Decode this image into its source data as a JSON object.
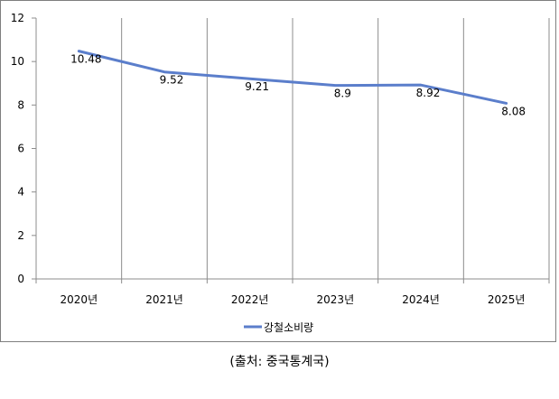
{
  "chart_data": {
    "type": "line",
    "categories": [
      "2020년",
      "2021년",
      "2022년",
      "2023년",
      "2024년",
      "2025년"
    ],
    "series": [
      {
        "name": "강철소비량",
        "values": [
          10.48,
          9.52,
          9.21,
          8.9,
          8.92,
          8.08
        ],
        "labels": [
          "10.48",
          "9.52",
          "9.21",
          "8.9",
          "8.92",
          "8.08"
        ],
        "color": "#5b7ecb"
      }
    ],
    "yticks": [
      "0",
      "2",
      "4",
      "6",
      "8",
      "10",
      "12"
    ],
    "ylim": [
      0,
      12
    ],
    "grid": "vertical",
    "legend": "bottom"
  },
  "caption": "(출처:  중국통계국)"
}
